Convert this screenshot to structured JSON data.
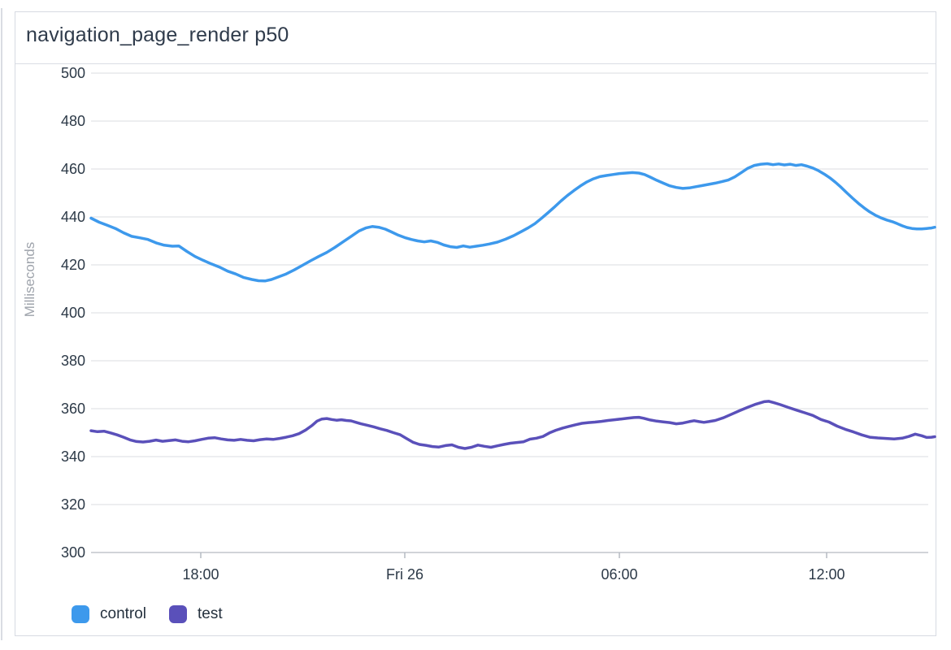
{
  "panel": {
    "title": "navigation_page_render p50"
  },
  "chart_data": {
    "type": "line",
    "title": "navigation_page_render p50",
    "xlabel": "",
    "ylabel": "Milliseconds",
    "ylim": [
      300,
      500
    ],
    "y_ticks": [
      500,
      480,
      460,
      440,
      420,
      400,
      380,
      360,
      340,
      320,
      300
    ],
    "x_axis_type": "time",
    "x_range": [
      0,
      1038
    ],
    "x_ticks": [
      {
        "label": "18:00",
        "x": 135
      },
      {
        "label": "Fri 26",
        "x": 386
      },
      {
        "label": "06:00",
        "x": 650
      },
      {
        "label": "12:00",
        "x": 905
      }
    ],
    "grid": true,
    "legend_position": "bottom",
    "colors": {
      "gridline": "#e7e8eb",
      "axis_line": "#c2c6cc",
      "tick_mark": "#b5bac2",
      "tick_text": "#2c3947",
      "axis_label_text": "#9ea3ab",
      "panel_border": "#d7dae2",
      "title_text": "#2f3b4b"
    },
    "series": [
      {
        "name": "control",
        "color": "#3d99ec",
        "points": [
          [
            0,
            439.5
          ],
          [
            10,
            437.8
          ],
          [
            20,
            436.5
          ],
          [
            30,
            435.2
          ],
          [
            40,
            433.4
          ],
          [
            50,
            431.9
          ],
          [
            60,
            431.3
          ],
          [
            70,
            430.6
          ],
          [
            80,
            429.2
          ],
          [
            90,
            428.2
          ],
          [
            100,
            427.8
          ],
          [
            108,
            427.9
          ],
          [
            118,
            425.6
          ],
          [
            128,
            423.5
          ],
          [
            138,
            421.9
          ],
          [
            148,
            420.4
          ],
          [
            158,
            419.1
          ],
          [
            168,
            417.4
          ],
          [
            178,
            416.2
          ],
          [
            188,
            414.7
          ],
          [
            198,
            413.9
          ],
          [
            206,
            413.4
          ],
          [
            214,
            413.3
          ],
          [
            222,
            413.9
          ],
          [
            230,
            414.9
          ],
          [
            240,
            416.2
          ],
          [
            250,
            417.9
          ],
          [
            260,
            419.8
          ],
          [
            270,
            421.7
          ],
          [
            280,
            423.5
          ],
          [
            290,
            425.2
          ],
          [
            300,
            427.3
          ],
          [
            310,
            429.6
          ],
          [
            320,
            431.9
          ],
          [
            330,
            434.2
          ],
          [
            338,
            435.4
          ],
          [
            346,
            436
          ],
          [
            354,
            435.7
          ],
          [
            362,
            434.9
          ],
          [
            370,
            433.7
          ],
          [
            378,
            432.4
          ],
          [
            386,
            431.4
          ],
          [
            394,
            430.6
          ],
          [
            402,
            430
          ],
          [
            410,
            429.6
          ],
          [
            418,
            430
          ],
          [
            426,
            429.4
          ],
          [
            434,
            428.3
          ],
          [
            442,
            427.6
          ],
          [
            450,
            427.3
          ],
          [
            458,
            427.9
          ],
          [
            466,
            427.4
          ],
          [
            474,
            427.8
          ],
          [
            482,
            428.2
          ],
          [
            490,
            428.7
          ],
          [
            500,
            429.5
          ],
          [
            510,
            430.7
          ],
          [
            520,
            432.2
          ],
          [
            530,
            434
          ],
          [
            538,
            435.5
          ],
          [
            546,
            437.2
          ],
          [
            554,
            439.4
          ],
          [
            562,
            441.7
          ],
          [
            570,
            444.1
          ],
          [
            578,
            446.6
          ],
          [
            586,
            448.9
          ],
          [
            594,
            451
          ],
          [
            602,
            452.9
          ],
          [
            610,
            454.6
          ],
          [
            618,
            455.9
          ],
          [
            626,
            456.8
          ],
          [
            634,
            457.3
          ],
          [
            642,
            457.7
          ],
          [
            650,
            458.1
          ],
          [
            658,
            458.3
          ],
          [
            666,
            458.5
          ],
          [
            674,
            458.3
          ],
          [
            681,
            457.7
          ],
          [
            688,
            456.6
          ],
          [
            696,
            455.3
          ],
          [
            704,
            454.1
          ],
          [
            712,
            453
          ],
          [
            720,
            452.3
          ],
          [
            728,
            451.9
          ],
          [
            736,
            452.1
          ],
          [
            744,
            452.6
          ],
          [
            752,
            453.1
          ],
          [
            760,
            453.6
          ],
          [
            768,
            454.1
          ],
          [
            776,
            454.7
          ],
          [
            784,
            455.4
          ],
          [
            792,
            456.7
          ],
          [
            800,
            458.5
          ],
          [
            808,
            460.3
          ],
          [
            816,
            461.5
          ],
          [
            824,
            462
          ],
          [
            832,
            462.2
          ],
          [
            839,
            461.8
          ],
          [
            846,
            462.1
          ],
          [
            853,
            461.7
          ],
          [
            860,
            462
          ],
          [
            867,
            461.5
          ],
          [
            874,
            461.8
          ],
          [
            881,
            461.2
          ],
          [
            888,
            460.4
          ],
          [
            895,
            459.3
          ],
          [
            902,
            457.9
          ],
          [
            909,
            456.3
          ],
          [
            916,
            454.4
          ],
          [
            923,
            452.3
          ],
          [
            930,
            450
          ],
          [
            937,
            447.8
          ],
          [
            944,
            445.7
          ],
          [
            951,
            443.8
          ],
          [
            958,
            442.1
          ],
          [
            965,
            440.7
          ],
          [
            972,
            439.6
          ],
          [
            979,
            438.7
          ],
          [
            986,
            438
          ],
          [
            992,
            437.2
          ],
          [
            998,
            436.3
          ],
          [
            1004,
            435.6
          ],
          [
            1010,
            435.2
          ],
          [
            1016,
            435
          ],
          [
            1022,
            435
          ],
          [
            1028,
            435.2
          ],
          [
            1034,
            435.4
          ],
          [
            1038,
            435.7
          ]
        ]
      },
      {
        "name": "test",
        "color": "#5a50ba",
        "points": [
          [
            0,
            350.8
          ],
          [
            8,
            350.4
          ],
          [
            16,
            350.6
          ],
          [
            24,
            349.9
          ],
          [
            32,
            349.1
          ],
          [
            40,
            348.1
          ],
          [
            48,
            347
          ],
          [
            56,
            346.3
          ],
          [
            64,
            346.1
          ],
          [
            72,
            346.4
          ],
          [
            80,
            346.9
          ],
          [
            88,
            346.4
          ],
          [
            96,
            346.7
          ],
          [
            104,
            347
          ],
          [
            112,
            346.4
          ],
          [
            120,
            346.2
          ],
          [
            128,
            346.6
          ],
          [
            136,
            347.2
          ],
          [
            144,
            347.7
          ],
          [
            152,
            347.9
          ],
          [
            160,
            347.4
          ],
          [
            168,
            347
          ],
          [
            176,
            346.8
          ],
          [
            184,
            347.2
          ],
          [
            192,
            346.8
          ],
          [
            200,
            346.6
          ],
          [
            208,
            347.1
          ],
          [
            216,
            347.4
          ],
          [
            224,
            347.2
          ],
          [
            232,
            347.6
          ],
          [
            240,
            348.1
          ],
          [
            248,
            348.7
          ],
          [
            256,
            349.6
          ],
          [
            264,
            351.1
          ],
          [
            272,
            353
          ],
          [
            278,
            354.8
          ],
          [
            284,
            355.7
          ],
          [
            290,
            355.9
          ],
          [
            296,
            355.5
          ],
          [
            302,
            355.2
          ],
          [
            308,
            355.4
          ],
          [
            314,
            355.1
          ],
          [
            320,
            354.9
          ],
          [
            326,
            354.3
          ],
          [
            332,
            353.7
          ],
          [
            340,
            353.1
          ],
          [
            348,
            352.4
          ],
          [
            356,
            351.6
          ],
          [
            364,
            350.9
          ],
          [
            372,
            350
          ],
          [
            380,
            349.2
          ],
          [
            388,
            347.6
          ],
          [
            396,
            346
          ],
          [
            404,
            345.1
          ],
          [
            412,
            344.7
          ],
          [
            420,
            344.2
          ],
          [
            428,
            344
          ],
          [
            436,
            344.6
          ],
          [
            444,
            344.9
          ],
          [
            452,
            343.9
          ],
          [
            460,
            343.4
          ],
          [
            468,
            343.9
          ],
          [
            476,
            344.8
          ],
          [
            484,
            344.3
          ],
          [
            492,
            343.9
          ],
          [
            500,
            344.5
          ],
          [
            508,
            345.1
          ],
          [
            516,
            345.6
          ],
          [
            524,
            345.9
          ],
          [
            532,
            346.2
          ],
          [
            540,
            347.3
          ],
          [
            548,
            347.7
          ],
          [
            556,
            348.4
          ],
          [
            564,
            349.9
          ],
          [
            572,
            351
          ],
          [
            580,
            351.9
          ],
          [
            588,
            352.6
          ],
          [
            596,
            353.3
          ],
          [
            604,
            353.9
          ],
          [
            612,
            354.2
          ],
          [
            620,
            354.4
          ],
          [
            628,
            354.7
          ],
          [
            636,
            355.1
          ],
          [
            644,
            355.4
          ],
          [
            652,
            355.7
          ],
          [
            660,
            356
          ],
          [
            668,
            356.3
          ],
          [
            674,
            356.4
          ],
          [
            680,
            356
          ],
          [
            688,
            355.3
          ],
          [
            696,
            354.8
          ],
          [
            704,
            354.5
          ],
          [
            712,
            354.2
          ],
          [
            720,
            353.7
          ],
          [
            728,
            354
          ],
          [
            736,
            354.6
          ],
          [
            742,
            355
          ],
          [
            748,
            354.6
          ],
          [
            754,
            354.3
          ],
          [
            760,
            354.6
          ],
          [
            768,
            355.1
          ],
          [
            778,
            356.2
          ],
          [
            788,
            357.7
          ],
          [
            798,
            359.2
          ],
          [
            808,
            360.6
          ],
          [
            818,
            361.9
          ],
          [
            828,
            362.9
          ],
          [
            834,
            363.1
          ],
          [
            840,
            362.5
          ],
          [
            848,
            361.7
          ],
          [
            858,
            360.5
          ],
          [
            868,
            359.4
          ],
          [
            878,
            358.3
          ],
          [
            888,
            357.2
          ],
          [
            898,
            355.5
          ],
          [
            908,
            354.4
          ],
          [
            918,
            352.7
          ],
          [
            928,
            351.4
          ],
          [
            938,
            350.3
          ],
          [
            948,
            349.1
          ],
          [
            958,
            348.1
          ],
          [
            968,
            347.8
          ],
          [
            978,
            347.6
          ],
          [
            988,
            347.4
          ],
          [
            998,
            347.7
          ],
          [
            1006,
            348.4
          ],
          [
            1014,
            349.4
          ],
          [
            1022,
            348.7
          ],
          [
            1028,
            348
          ],
          [
            1034,
            348.1
          ],
          [
            1038,
            348.3
          ]
        ]
      }
    ]
  }
}
